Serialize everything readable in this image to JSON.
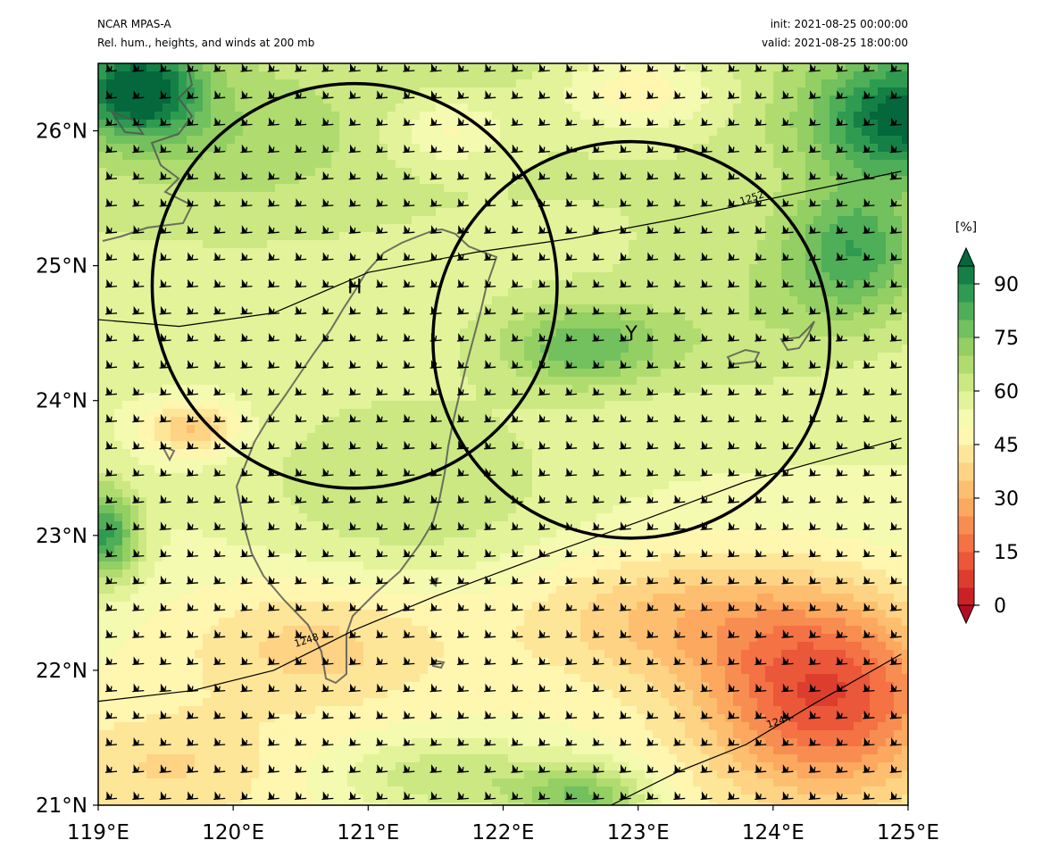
{
  "header": {
    "model": "NCAR MPAS-A",
    "description": "Rel. hum., heights, and winds at 200 mb",
    "init": "init: 2021-08-25 00:00:00",
    "valid": "valid: 2021-08-25 18:00:00"
  },
  "map": {
    "lon_range": [
      119,
      125
    ],
    "lat_range": [
      21,
      26.5
    ],
    "lon_ticks": [
      "119°E",
      "120°E",
      "121°E",
      "122°E",
      "123°E",
      "124°E",
      "125°E"
    ],
    "lat_ticks": [
      "21°N",
      "22°N",
      "23°N",
      "24°N",
      "25°N",
      "26°N"
    ],
    "markers": [
      {
        "label": "H",
        "lon": 120.9,
        "lat": 24.85
      },
      {
        "label": "Y",
        "lon": 122.95,
        "lat": 24.5
      }
    ],
    "circles": [
      {
        "center_lon": 120.9,
        "center_lat": 24.85,
        "radius_deg": 1.5
      },
      {
        "center_lon": 122.95,
        "center_lat": 24.45,
        "radius_deg": 1.47
      }
    ],
    "contours": [
      {
        "label": "1252",
        "points": [
          [
            119.0,
            24.6
          ],
          [
            119.6,
            24.55
          ],
          [
            120.3,
            24.65
          ],
          [
            121.0,
            24.95
          ],
          [
            121.8,
            25.1
          ],
          [
            122.5,
            25.2
          ],
          [
            123.3,
            25.35
          ],
          [
            124.0,
            25.5
          ],
          [
            124.95,
            25.7
          ]
        ],
        "label_at": [
          123.85,
          25.48
        ]
      },
      {
        "label": "1248",
        "points": [
          [
            119.0,
            21.77
          ],
          [
            119.7,
            21.85
          ],
          [
            120.3,
            22.0
          ],
          [
            120.9,
            22.3
          ],
          [
            121.5,
            22.55
          ],
          [
            122.3,
            22.85
          ],
          [
            123.0,
            23.1
          ],
          [
            123.8,
            23.4
          ],
          [
            124.95,
            23.72
          ]
        ],
        "label_at": [
          120.55,
          22.2
        ]
      },
      {
        "label": "1244",
        "points": [
          [
            122.8,
            21.0
          ],
          [
            123.3,
            21.25
          ],
          [
            123.8,
            21.45
          ],
          [
            124.3,
            21.75
          ],
          [
            124.95,
            22.12
          ]
        ],
        "label_at": [
          124.05,
          21.6
        ]
      }
    ],
    "land_color": "#505050"
  },
  "colorbar": {
    "unit": "[%]",
    "tick_labels": [
      "0",
      "15",
      "30",
      "45",
      "60",
      "75",
      "90"
    ],
    "tick_values": [
      0,
      15,
      30,
      45,
      60,
      75,
      90
    ],
    "levels": [
      0,
      5,
      10,
      15,
      20,
      25,
      30,
      35,
      40,
      45,
      50,
      55,
      60,
      65,
      70,
      75,
      80,
      85,
      90,
      95
    ],
    "colors": [
      "#b30d26",
      "#cc2027",
      "#dd3d2d",
      "#ea5739",
      "#f47244",
      "#f88d52",
      "#fca85e",
      "#fdbf6f",
      "#fed384",
      "#fee699",
      "#fff6b0",
      "#f4fab0",
      "#e3f399",
      "#cbe883",
      "#b0dc6f",
      "#93cf63",
      "#72c05e",
      "#4fae58",
      "#2f9b51",
      "#148046",
      "#04683c"
    ]
  }
}
